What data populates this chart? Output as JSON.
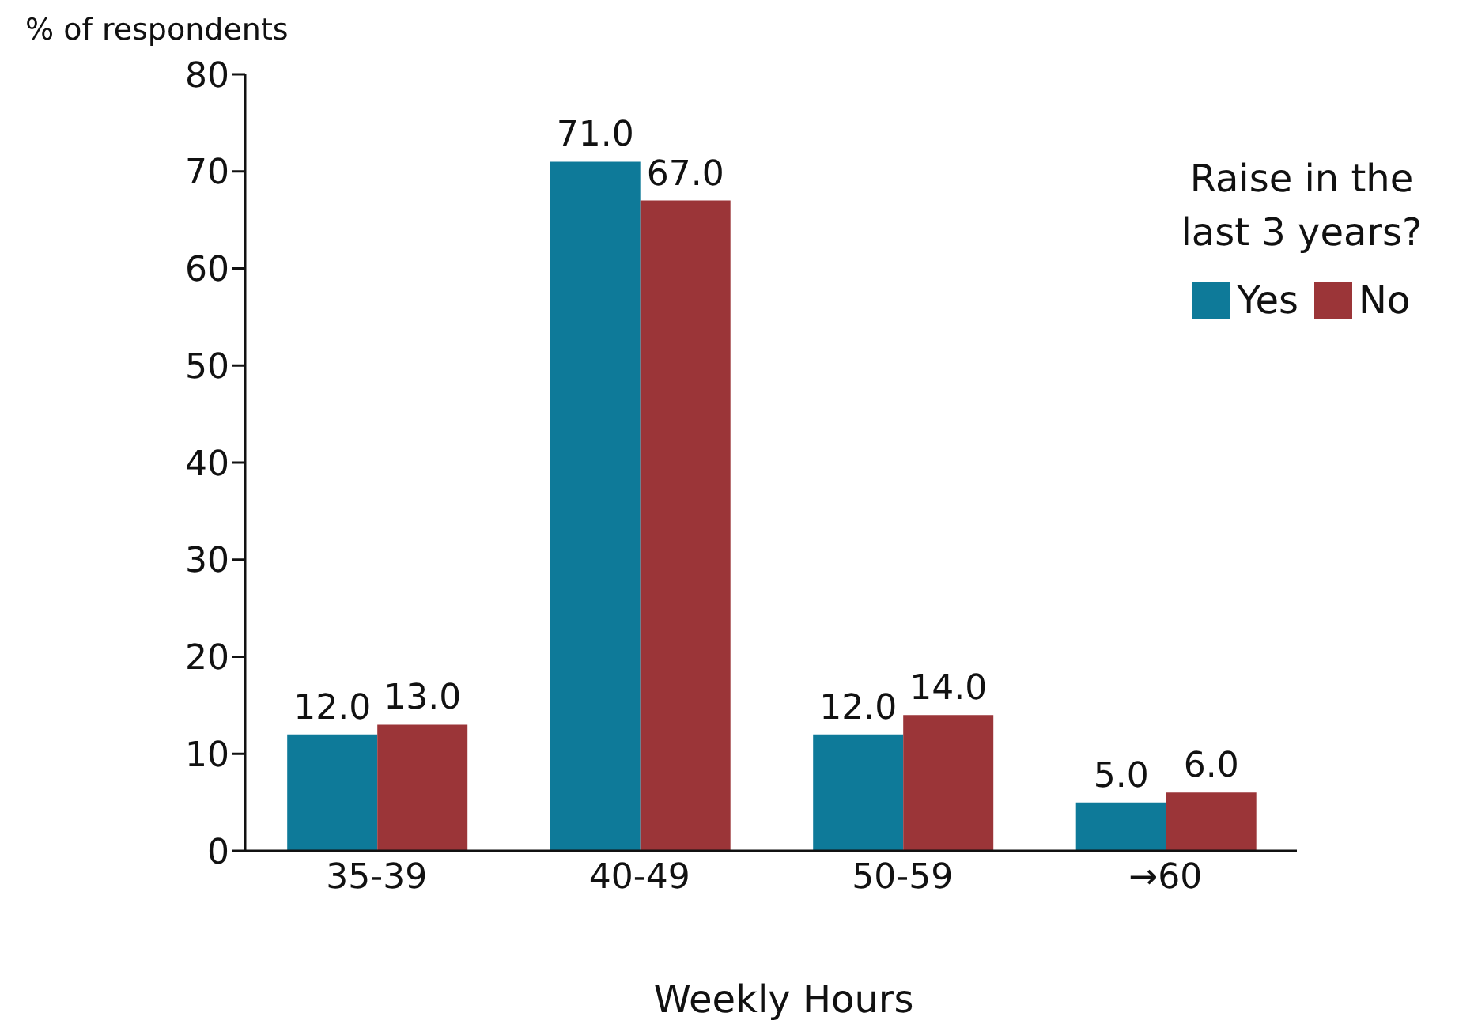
{
  "chart_data": {
    "type": "bar",
    "xlabel": "Weekly Hours",
    "ylabel": "% of respondents",
    "legend_title": "Raise in the last 3 years?",
    "legend": "right",
    "categories": [
      "35-39",
      "40-49",
      "50-59",
      "→60"
    ],
    "series": [
      {
        "name": "Yes",
        "color": "#0e7a99",
        "values": [
          12,
          71,
          12,
          5
        ],
        "value_labels": [
          "12.0",
          "71.0",
          "12.0",
          "5.0"
        ]
      },
      {
        "name": "No",
        "color": "#9b3538",
        "values": [
          13,
          67,
          14,
          6
        ],
        "value_labels": [
          "13.0",
          "67.0",
          "14.0",
          "6.0"
        ]
      }
    ],
    "ylim": [
      0,
      80
    ],
    "yticks": [
      0,
      10,
      20,
      30,
      40,
      50,
      60,
      70,
      80
    ],
    "grid": false
  }
}
